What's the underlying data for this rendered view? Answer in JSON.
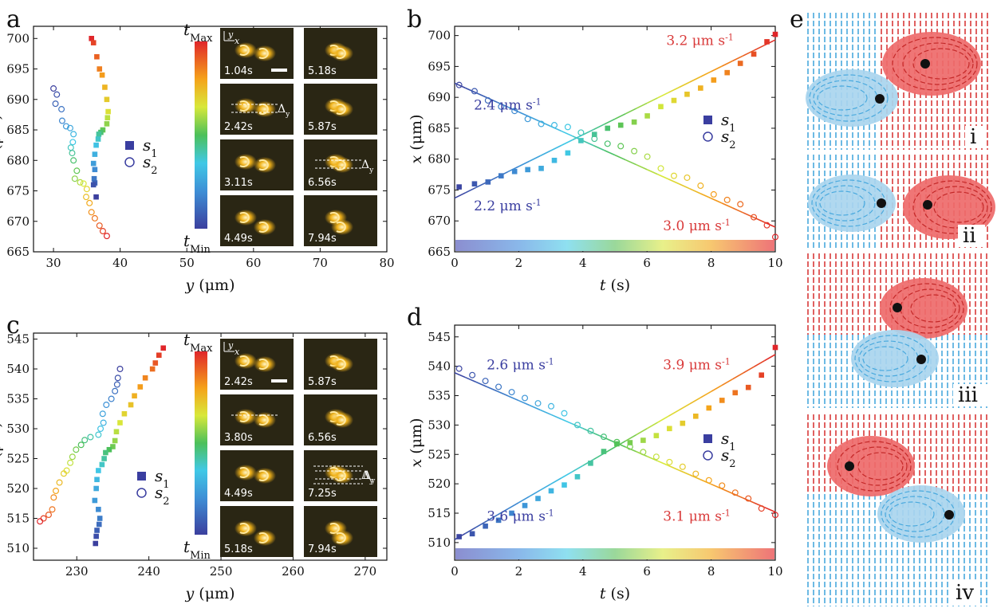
{
  "panel_letters": [
    "a",
    "b",
    "c",
    "d",
    "e"
  ],
  "colorbar": {
    "max_label": "t",
    "max_sub": "Max",
    "min_label": "t",
    "min_sub": "Min"
  },
  "inset_axes": {
    "y": "y",
    "x": "x"
  },
  "frames_a": [
    "1.04s",
    "5.18s",
    "2.42s",
    "5.87s",
    "3.11s",
    "6.56s",
    "4.49s",
    "7.94s"
  ],
  "frames_c": [
    "2.42s",
    "5.87s",
    "3.80s",
    "6.56s",
    "4.49s",
    "7.25s",
    "5.18s",
    "7.94s"
  ],
  "delta_label": "Δ",
  "delta_sub": "y",
  "legend": {
    "s1": "s",
    "s1_sub": "1",
    "s2": "s",
    "s2_sub": "2"
  },
  "roman": [
    "i",
    "ii",
    "iii",
    "iv"
  ],
  "colors": {
    "s_blue": "#3a3ea0",
    "red": "#d93a3a",
    "cyan": "#49a9de",
    "blob_red": "#ee6a6a",
    "blob_cyan": "#a9d5ee"
  },
  "chart_data": [
    {
      "id": "a",
      "type": "scatter",
      "xlabel": "y (μm)",
      "ylabel": "x (μm)",
      "xlim": [
        27,
        80
      ],
      "ylim": [
        665,
        702
      ],
      "xticks": [
        30,
        40,
        50,
        60,
        70,
        80
      ],
      "yticks": [
        665,
        670,
        675,
        680,
        685,
        690,
        695,
        700
      ],
      "series": [
        {
          "name": "s1",
          "marker": "square",
          "points": [
            [
              35.7,
              700
            ],
            [
              36.0,
              699.3
            ],
            [
              36.5,
              697
            ],
            [
              36.9,
              695
            ],
            [
              37.3,
              694
            ],
            [
              37.7,
              692
            ],
            [
              38.0,
              690
            ],
            [
              38.2,
              688
            ],
            [
              38.1,
              687
            ],
            [
              38.0,
              686
            ],
            [
              37.4,
              685
            ],
            [
              37.1,
              684.6
            ],
            [
              36.8,
              684.3
            ],
            [
              36.7,
              683.5
            ],
            [
              36.4,
              682.5
            ],
            [
              36.2,
              681
            ],
            [
              36.0,
              679.5
            ],
            [
              36.2,
              678.5
            ],
            [
              36.1,
              677
            ],
            [
              36.2,
              676.3
            ],
            [
              36.0,
              676
            ],
            [
              36.4,
              674
            ]
          ]
        },
        {
          "name": "s2",
          "marker": "circle",
          "points": [
            [
              30.0,
              691.8
            ],
            [
              30.5,
              690.8
            ],
            [
              30.3,
              689.3
            ],
            [
              31.2,
              688.4
            ],
            [
              31.3,
              686.5
            ],
            [
              31.9,
              685.6
            ],
            [
              32.5,
              685.3
            ],
            [
              33.0,
              684.3
            ],
            [
              32.9,
              683
            ],
            [
              32.6,
              682.1
            ],
            [
              32.8,
              681.2
            ],
            [
              33.0,
              680
            ],
            [
              33.5,
              678.3
            ],
            [
              33.2,
              677
            ],
            [
              34.0,
              676.4
            ],
            [
              34.5,
              676.2
            ],
            [
              35.0,
              675.3
            ],
            [
              34.9,
              674
            ],
            [
              35.4,
              673
            ],
            [
              35.7,
              671.5
            ],
            [
              36.2,
              670.5
            ],
            [
              36.9,
              669.3
            ],
            [
              37.4,
              668.4
            ],
            [
              38.0,
              667.6
            ]
          ]
        }
      ]
    },
    {
      "id": "b",
      "type": "scatter",
      "xlabel": "t (s)",
      "ylabel": "x (μm)",
      "xlim": [
        0,
        10
      ],
      "ylim": [
        665,
        701.5
      ],
      "xticks": [
        0,
        2,
        4,
        6,
        8,
        10
      ],
      "yticks": [
        665,
        670,
        675,
        680,
        685,
        690,
        695,
        700
      ],
      "series": [
        {
          "name": "s1",
          "marker": "square",
          "points": [
            [
              0.14,
              675.5
            ],
            [
              0.62,
              676
            ],
            [
              1.04,
              676.3
            ],
            [
              1.45,
              677.3
            ],
            [
              1.87,
              678
            ],
            [
              2.28,
              678.3
            ],
            [
              2.7,
              678.5
            ],
            [
              3.11,
              679.8
            ],
            [
              3.53,
              681
            ],
            [
              3.94,
              683
            ],
            [
              4.36,
              684
            ],
            [
              4.77,
              685
            ],
            [
              5.18,
              685.5
            ],
            [
              5.6,
              686
            ],
            [
              6.01,
              687
            ],
            [
              6.43,
              688.5
            ],
            [
              6.84,
              689.5
            ],
            [
              7.25,
              690.5
            ],
            [
              7.67,
              691.5
            ],
            [
              8.08,
              692.8
            ],
            [
              8.5,
              694
            ],
            [
              8.91,
              695.5
            ],
            [
              9.33,
              697
            ],
            [
              9.74,
              699
            ],
            [
              10.0,
              700.2
            ]
          ]
        },
        {
          "name": "s2",
          "marker": "circle",
          "points": [
            [
              0.14,
              692
            ],
            [
              0.62,
              691
            ],
            [
              1.04,
              689.5
            ],
            [
              1.45,
              688.5
            ],
            [
              1.87,
              687.8
            ],
            [
              2.28,
              686.5
            ],
            [
              2.7,
              685.7
            ],
            [
              3.11,
              685.5
            ],
            [
              3.53,
              685.2
            ],
            [
              3.94,
              684.3
            ],
            [
              4.36,
              683.3
            ],
            [
              4.77,
              682.5
            ],
            [
              5.18,
              682.1
            ],
            [
              5.6,
              681.3
            ],
            [
              6.01,
              680.4
            ],
            [
              6.43,
              678.5
            ],
            [
              6.84,
              677.3
            ],
            [
              7.25,
              677
            ],
            [
              7.67,
              675.7
            ],
            [
              8.08,
              674.3
            ],
            [
              8.5,
              673.4
            ],
            [
              8.91,
              672.7
            ],
            [
              9.33,
              670.6
            ],
            [
              9.74,
              669.3
            ],
            [
              10.0,
              667.4
            ]
          ]
        }
      ],
      "fits": [
        {
          "series": "s1",
          "x": [
            0,
            10
          ],
          "y": [
            673.7,
            699.3
          ]
        },
        {
          "series": "s2",
          "x": [
            0,
            10
          ],
          "y": [
            692.3,
            669.0
          ]
        }
      ],
      "annotations": [
        {
          "text": "3.2 μm s",
          "sup": "-1",
          "color": "red",
          "t": 6.6,
          "x": 698.5
        },
        {
          "text": "2.4 μm s",
          "sup": "-1",
          "color": "blue",
          "t": 0.6,
          "x": 688
        },
        {
          "text": "2.2 μm s",
          "sup": "-1",
          "color": "blue",
          "t": 0.6,
          "x": 671.7
        },
        {
          "text": "3.0 μm s",
          "sup": "-1",
          "color": "red",
          "t": 6.5,
          "x": 668.5
        }
      ]
    },
    {
      "id": "c",
      "type": "scatter",
      "xlabel": "y (μm)",
      "ylabel": "x (μm)",
      "xlim": [
        224,
        273
      ],
      "ylim": [
        508,
        546
      ],
      "xticks": [
        230,
        240,
        250,
        260,
        270
      ],
      "yticks": [
        510,
        515,
        520,
        525,
        530,
        535,
        540,
        545
      ],
      "series": [
        {
          "name": "s1",
          "marker": "square",
          "points": [
            [
              242,
              543.5
            ],
            [
              241.4,
              542.3
            ],
            [
              240.9,
              541
            ],
            [
              240.5,
              540
            ],
            [
              239.5,
              538.5
            ],
            [
              238.8,
              537
            ],
            [
              238,
              535.5
            ],
            [
              237.5,
              534
            ],
            [
              236.6,
              532.5
            ],
            [
              236.0,
              531
            ],
            [
              235.5,
              529.5
            ],
            [
              235.3,
              528
            ],
            [
              235.0,
              527
            ],
            [
              234.5,
              526.5
            ],
            [
              234.0,
              526
            ],
            [
              233.8,
              525
            ],
            [
              233.5,
              524
            ],
            [
              233.0,
              523
            ],
            [
              232.8,
              521.5
            ],
            [
              232.7,
              520
            ],
            [
              232.5,
              518
            ],
            [
              233.0,
              516.5
            ],
            [
              233.2,
              515
            ],
            [
              233.1,
              514
            ],
            [
              232.8,
              513
            ],
            [
              232.7,
              512
            ],
            [
              232.6,
              510.8
            ]
          ]
        },
        {
          "name": "s2",
          "marker": "circle",
          "points": [
            [
              236.0,
              540
            ],
            [
              235.7,
              538.5
            ],
            [
              235.6,
              537.4
            ],
            [
              235.3,
              536.3
            ],
            [
              234.8,
              535
            ],
            [
              234.1,
              534
            ],
            [
              233.6,
              532.5
            ],
            [
              233.7,
              531
            ],
            [
              233.3,
              530
            ],
            [
              233.0,
              529
            ],
            [
              231.9,
              528.6
            ],
            [
              231.1,
              528.1
            ],
            [
              230.6,
              527.3
            ],
            [
              229.9,
              526.5
            ],
            [
              229.4,
              525.3
            ],
            [
              229.1,
              524.3
            ],
            [
              228.6,
              523
            ],
            [
              228.2,
              522.5
            ],
            [
              227.6,
              521
            ],
            [
              227.1,
              519.6
            ],
            [
              226.8,
              518.5
            ],
            [
              226.6,
              516.5
            ],
            [
              226.1,
              515.6
            ],
            [
              225.4,
              515
            ],
            [
              224.9,
              514.5
            ]
          ]
        }
      ]
    },
    {
      "id": "d",
      "type": "scatter",
      "xlabel": "t (s)",
      "ylabel": "x (μm)",
      "xlim": [
        0,
        10
      ],
      "ylim": [
        507,
        547
      ],
      "xticks": [
        0,
        2,
        4,
        6,
        8,
        10
      ],
      "yticks": [
        510,
        515,
        520,
        525,
        530,
        535,
        540,
        545
      ],
      "series": [
        {
          "name": "s1",
          "marker": "square",
          "points": [
            [
              0.14,
              511
            ],
            [
              0.55,
              511.5
            ],
            [
              0.96,
              512.8
            ],
            [
              1.37,
              513.8
            ],
            [
              1.78,
              515
            ],
            [
              2.19,
              516.3
            ],
            [
              2.6,
              517.5
            ],
            [
              3.01,
              518.8
            ],
            [
              3.42,
              519.8
            ],
            [
              3.83,
              521.2
            ],
            [
              4.24,
              523.5
            ],
            [
              4.65,
              525.5
            ],
            [
              5.06,
              526.8
            ],
            [
              5.47,
              527
            ],
            [
              5.88,
              527.4
            ],
            [
              6.29,
              528.2
            ],
            [
              6.7,
              529.4
            ],
            [
              7.11,
              530.3
            ],
            [
              7.52,
              531.5
            ],
            [
              7.93,
              532.9
            ],
            [
              8.34,
              534.2
            ],
            [
              8.75,
              535.5
            ],
            [
              9.16,
              536.4
            ],
            [
              9.57,
              538.5
            ],
            [
              10.0,
              543.2
            ]
          ]
        },
        {
          "name": "s2",
          "marker": "circle",
          "points": [
            [
              0.14,
              539.6
            ],
            [
              0.55,
              538.5
            ],
            [
              0.96,
              537.5
            ],
            [
              1.37,
              536.5
            ],
            [
              1.78,
              535.6
            ],
            [
              2.19,
              534.6
            ],
            [
              2.6,
              533.7
            ],
            [
              3.01,
              533.2
            ],
            [
              3.42,
              532
            ],
            [
              3.83,
              530
            ],
            [
              4.24,
              529
            ],
            [
              4.65,
              528
            ],
            [
              5.06,
              527.1
            ],
            [
              5.47,
              526.3
            ],
            [
              5.88,
              525.4
            ],
            [
              6.29,
              524.6
            ],
            [
              6.7,
              523.7
            ],
            [
              7.11,
              522.9
            ],
            [
              7.52,
              521.7
            ],
            [
              7.93,
              520.6
            ],
            [
              8.34,
              519.7
            ],
            [
              8.75,
              518.5
            ],
            [
              9.16,
              517.5
            ],
            [
              9.57,
              515.8
            ],
            [
              10.0,
              514.7
            ]
          ]
        }
      ],
      "fits": [
        {
          "series": "s1",
          "x": [
            0,
            10
          ],
          "y": [
            510.5,
            542.0
          ]
        },
        {
          "series": "s2",
          "x": [
            0,
            10
          ],
          "y": [
            538.9,
            515.2
          ]
        }
      ],
      "annotations": [
        {
          "text": "2.6 μm s",
          "sup": "-1",
          "color": "blue",
          "t": 1.0,
          "x": 539.5
        },
        {
          "text": "3.9 μm s",
          "sup": "-1",
          "color": "red",
          "t": 6.5,
          "x": 539.5
        },
        {
          "text": "3.6 μm s",
          "sup": "-1",
          "color": "blue",
          "t": 1.0,
          "x": 513.7
        },
        {
          "text": "3.1 μm s",
          "sup": "-1",
          "color": "red",
          "t": 6.5,
          "x": 513.7
        }
      ]
    }
  ]
}
